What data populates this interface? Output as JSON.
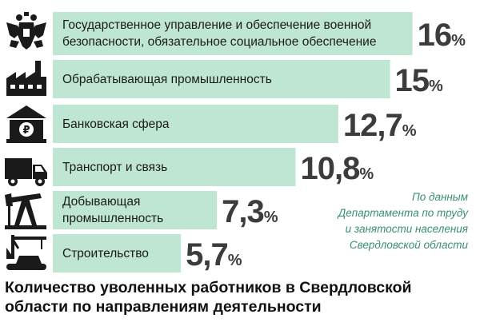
{
  "chart_data": {
    "type": "bar",
    "orientation": "horizontal",
    "title": "Количество уволенных работников в Свердловской области по направлениям деятельности",
    "source_note": "По данным Департамента по труду и занятости населения Свердловской области",
    "unit": "%",
    "categories": [
      "Государственное управление и обеспечение военной безопасности, обязательное социальное обеспечение",
      "Обрабатывающая промышленность",
      "Банковская сфера",
      "Транспорт и связь",
      "Добывающая промышленность",
      "Строительство"
    ],
    "values": [
      16,
      15,
      12.7,
      10.8,
      7.3,
      5.7
    ],
    "value_labels": [
      "16",
      "15",
      "12,7",
      "10,8",
      "7,3",
      "5,7"
    ],
    "bar_color": "#bfe6d2",
    "value_color": "#3c3c3c",
    "source_color": "#3a8f6f"
  },
  "display": {
    "labels": [
      "Государственное управление и обеспечение военной\nбезопасности, обязательное социальное обеспечение",
      "Обрабатывающая промышленность",
      "Банковская сфера",
      "Транспорт и связь",
      "Добывающая\nпромышленность",
      "Строительство"
    ],
    "source_lines": "По данным\nДепартамента по труду\nи занятости населения\nСвердловской области",
    "title_lines": "Количество уволенных работников в Свердловской\nобласти по направлениям деятельности"
  },
  "icons": [
    "coat-of-arms-icon",
    "factory-icon",
    "bank-icon",
    "truck-icon",
    "oil-pump-icon",
    "crane-icon"
  ]
}
